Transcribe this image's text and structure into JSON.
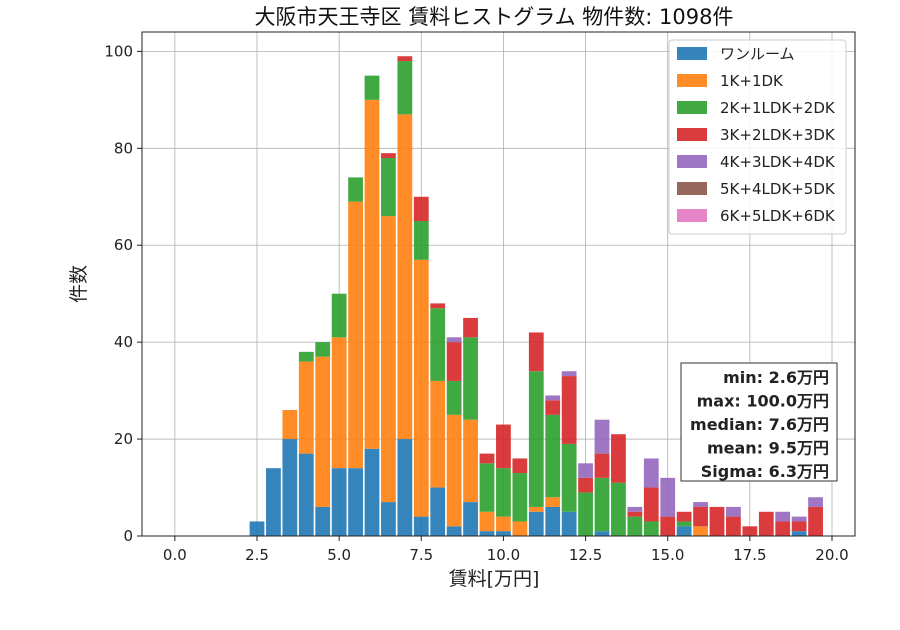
{
  "chart_data": {
    "type": "bar",
    "stacked": true,
    "title": "大阪市天王寺区 賃料ヒストグラム 物件数: 1098件",
    "xlabel": "賃料[万円]",
    "ylabel": "件数",
    "xlim": [
      -1.0,
      20.7
    ],
    "ylim": [
      0,
      104
    ],
    "xticks": [
      0.0,
      2.5,
      5.0,
      7.5,
      10.0,
      12.5,
      15.0,
      17.5,
      20.0
    ],
    "xtick_labels": [
      "0.0",
      "2.5",
      "5.0",
      "7.5",
      "10.0",
      "12.5",
      "15.0",
      "17.5",
      "20.0"
    ],
    "yticks": [
      0,
      20,
      40,
      60,
      80,
      100
    ],
    "ytick_labels": [
      "0",
      "20",
      "40",
      "60",
      "80",
      "100"
    ],
    "grid": true,
    "legend_position": "top-right",
    "bin_width": 0.5,
    "bar_fraction": 0.9,
    "x": [
      2.5,
      3.0,
      3.5,
      4.0,
      4.5,
      5.0,
      5.5,
      6.0,
      6.5,
      7.0,
      7.5,
      8.0,
      8.5,
      9.0,
      9.5,
      10.0,
      10.5,
      11.0,
      11.5,
      12.0,
      12.5,
      13.0,
      13.5,
      14.0,
      14.5,
      15.0,
      15.5,
      16.0,
      16.5,
      17.0,
      17.5,
      18.0,
      18.5,
      19.0,
      19.5,
      20.0
    ],
    "series": [
      {
        "name": "ワンルーム",
        "color": "#1f77b4",
        "values": [
          3,
          14,
          20,
          17,
          6,
          14,
          14,
          18,
          7,
          20,
          4,
          10,
          2,
          7,
          1,
          1,
          0,
          5,
          6,
          5,
          0,
          1,
          0,
          0,
          0,
          0,
          2,
          0,
          0,
          0,
          0,
          0,
          0,
          1,
          0,
          0
        ]
      },
      {
        "name": "1K+1DK",
        "color": "#ff7f0e",
        "values": [
          0,
          0,
          6,
          19,
          31,
          27,
          55,
          72,
          59,
          67,
          53,
          22,
          23,
          17,
          4,
          3,
          3,
          1,
          2,
          0,
          0,
          0,
          0,
          0,
          0,
          0,
          0,
          2,
          0,
          0,
          0,
          0,
          0,
          0,
          0,
          0
        ]
      },
      {
        "name": "2K+1LDK+2DK",
        "color": "#2ca02c",
        "values": [
          0,
          0,
          0,
          2,
          3,
          9,
          5,
          5,
          12,
          11,
          8,
          15,
          7,
          17,
          10,
          10,
          10,
          28,
          17,
          14,
          9,
          11,
          11,
          4,
          3,
          0,
          1,
          0,
          0,
          0,
          0,
          0,
          0,
          0,
          0,
          0
        ]
      },
      {
        "name": "3K+2LDK+3DK",
        "color": "#d62728",
        "values": [
          0,
          0,
          0,
          0,
          0,
          0,
          0,
          0,
          1,
          1,
          5,
          1,
          8,
          4,
          2,
          9,
          3,
          8,
          3,
          14,
          3,
          5,
          10,
          1,
          7,
          4,
          2,
          4,
          6,
          4,
          2,
          5,
          3,
          2,
          6,
          0
        ]
      },
      {
        "name": "4K+3LDK+4DK",
        "color": "#9467bd",
        "values": [
          0,
          0,
          0,
          0,
          0,
          0,
          0,
          0,
          0,
          0,
          0,
          0,
          1,
          0,
          0,
          0,
          0,
          0,
          1,
          1,
          3,
          7,
          0,
          1,
          6,
          8,
          0,
          1,
          0,
          2,
          0,
          0,
          2,
          1,
          2,
          0
        ]
      },
      {
        "name": "5K+4LDK+5DK",
        "color": "#8c564b",
        "values": [
          0,
          0,
          0,
          0,
          0,
          0,
          0,
          0,
          0,
          0,
          0,
          0,
          0,
          0,
          0,
          0,
          0,
          0,
          0,
          0,
          0,
          0,
          0,
          0,
          0,
          0,
          0,
          0,
          0,
          0,
          0,
          0,
          0,
          0,
          0,
          0
        ]
      },
      {
        "name": "6K+5LDK+6DK",
        "color": "#e377c2",
        "values": [
          0,
          0,
          0,
          0,
          0,
          0,
          0,
          0,
          0,
          0,
          0,
          0,
          0,
          0,
          0,
          0,
          0,
          0,
          0,
          0,
          0,
          0,
          0,
          0,
          0,
          0,
          0,
          0,
          0,
          0,
          0,
          0,
          0,
          0,
          0,
          0
        ]
      }
    ],
    "stats_box": [
      "min: 2.6万円",
      "max: 100.0万円",
      "median: 7.6万円",
      "mean: 9.5万円",
      "Sigma: 6.3万円"
    ]
  }
}
